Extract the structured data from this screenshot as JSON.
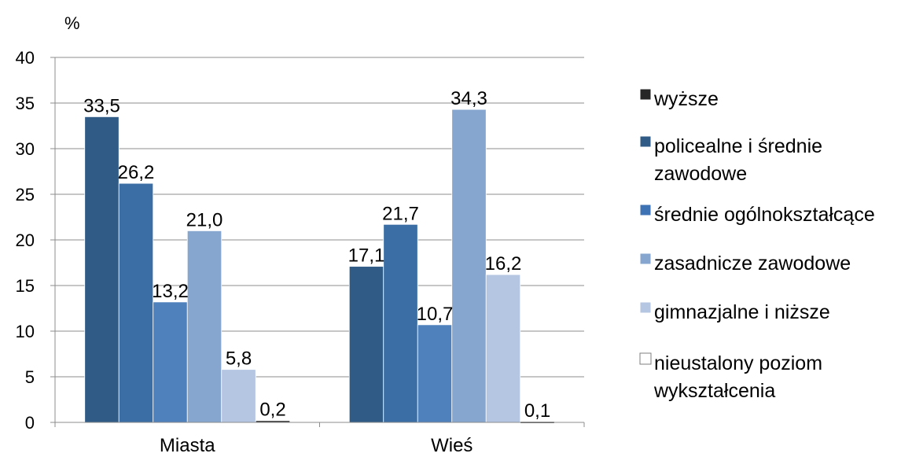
{
  "chart_data": {
    "type": "bar",
    "ylabel": "%",
    "ylim": [
      0,
      40
    ],
    "yticks": [
      "0",
      "5",
      "10",
      "15",
      "20",
      "25",
      "30",
      "35",
      "40"
    ],
    "categories": [
      "Miasta",
      "Wieś"
    ],
    "legend_position": "right",
    "grid": true,
    "series": [
      {
        "name": "wyższe",
        "legend_lines": [
          "wyższe"
        ],
        "values": [
          33.5,
          17.1
        ],
        "labels": [
          "33,5",
          "17,1"
        ],
        "color": "#2f5b86"
      },
      {
        "name": "policealne i średnie zawodowe",
        "legend_lines": [
          "policealne i średnie",
          "zawodowe"
        ],
        "values": [
          26.2,
          21.7
        ],
        "labels": [
          "26,2",
          "21,7"
        ],
        "color": "#3a6ea5"
      },
      {
        "name": "średnie ogólnokształcące",
        "legend_lines": [
          "średnie ogólnokształcące"
        ],
        "values": [
          13.2,
          10.7
        ],
        "labels": [
          "13,2",
          "10,7"
        ],
        "color": "#4f81bd"
      },
      {
        "name": "zasadnicze zawodowe",
        "legend_lines": [
          "zasadnicze zawodowe"
        ],
        "values": [
          21.0,
          34.3
        ],
        "labels": [
          "21,0",
          "34,3"
        ],
        "color": "#86a6cf"
      },
      {
        "name": "gimnazjalne i niższe",
        "legend_lines": [
          "gimnazjalne i niższe"
        ],
        "values": [
          5.8,
          16.2
        ],
        "labels": [
          "5,8",
          "16,2"
        ],
        "color": "#b4c6e2"
      },
      {
        "name": "nieustalony poziom wykształcenia",
        "legend_lines": [
          "nieustalony poziom",
          "wykształcenia"
        ],
        "values": [
          0.2,
          0.1
        ],
        "labels": [
          "0,2",
          "0,1"
        ],
        "color": "#ffffff"
      }
    ],
    "legend_swatch_colors": [
      "#262626",
      "#2f5b86",
      "#3d72b4",
      "#86a6cf",
      "#b4c6e2",
      "#ffffff"
    ]
  }
}
